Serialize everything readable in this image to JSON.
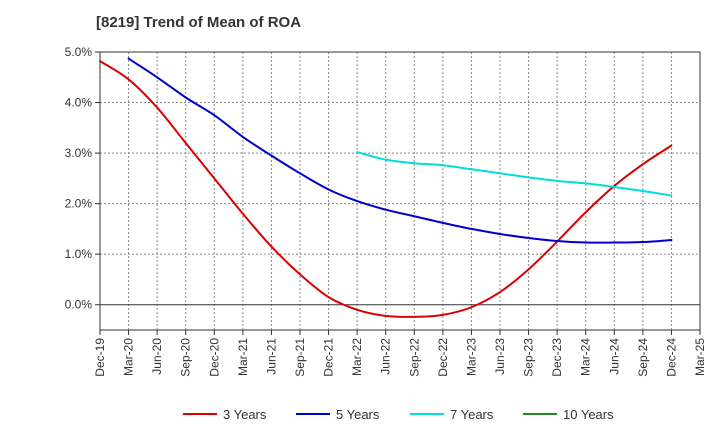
{
  "chart_data": {
    "type": "line",
    "title": "[8219]  Trend of Mean of ROA",
    "xlabel": "",
    "ylabel": "",
    "categories": [
      "Dec-19",
      "Mar-20",
      "Jun-20",
      "Sep-20",
      "Dec-20",
      "Mar-21",
      "Jun-21",
      "Sep-21",
      "Dec-21",
      "Mar-22",
      "Jun-22",
      "Sep-22",
      "Dec-22",
      "Mar-23",
      "Jun-23",
      "Sep-23",
      "Dec-23",
      "Mar-24",
      "Jun-24",
      "Sep-24",
      "Dec-24",
      "Mar-25"
    ],
    "ylim": [
      -0.5,
      5.0
    ],
    "yticks": [
      0.0,
      1.0,
      2.0,
      3.0,
      4.0,
      5.0
    ],
    "ytick_labels": [
      "0.0%",
      "1.0%",
      "2.0%",
      "3.0%",
      "4.0%",
      "5.0%"
    ],
    "grid": true,
    "legend_position": "bottom",
    "series": [
      {
        "name": "3 Years",
        "color": "#dd0000",
        "values": [
          4.82,
          4.46,
          3.9,
          3.2,
          2.5,
          1.8,
          1.15,
          0.6,
          0.15,
          -0.1,
          -0.22,
          -0.24,
          -0.2,
          -0.05,
          0.25,
          0.7,
          1.25,
          1.83,
          2.35,
          2.78,
          3.15,
          null
        ]
      },
      {
        "name": "5 Years",
        "color": "#0000cc",
        "values": [
          null,
          4.87,
          4.5,
          4.1,
          3.75,
          3.32,
          2.95,
          2.6,
          2.28,
          2.05,
          1.88,
          1.75,
          1.62,
          1.5,
          1.4,
          1.32,
          1.26,
          1.23,
          1.23,
          1.24,
          1.28,
          null
        ]
      },
      {
        "name": "7 Years",
        "color": "#00dddd",
        "values": [
          null,
          null,
          null,
          null,
          null,
          null,
          null,
          null,
          null,
          3.02,
          2.87,
          2.8,
          2.76,
          2.68,
          2.6,
          2.52,
          2.45,
          2.4,
          2.33,
          2.25,
          2.16,
          null
        ]
      },
      {
        "name": "10 Years",
        "color": "#228822",
        "values": [
          null,
          null,
          null,
          null,
          null,
          null,
          null,
          null,
          null,
          null,
          null,
          null,
          null,
          null,
          null,
          null,
          null,
          null,
          null,
          null,
          null,
          null
        ]
      }
    ]
  }
}
